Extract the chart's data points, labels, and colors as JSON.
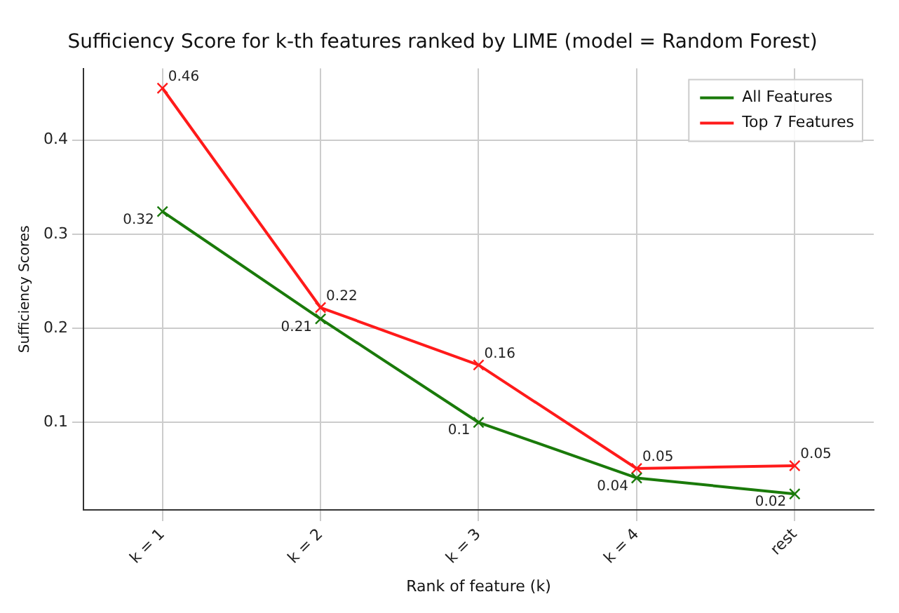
{
  "chart_data": {
    "type": "line",
    "title": "Sufficiency Score for k-th features ranked by LIME (model = Random Forest)",
    "xlabel": "Rank of feature (k)",
    "ylabel": "Sufficiency Scores",
    "categories": [
      "k = 1",
      "k = 2",
      "k = 3",
      "k = 4",
      "rest"
    ],
    "series": [
      {
        "name": "All Features",
        "color": "#1a7a0a",
        "values": [
          0.324,
          0.21,
          0.1,
          0.041,
          0.024
        ],
        "value_labels": [
          "0.32",
          "0.21",
          "0.1",
          "0.04",
          "0.02"
        ]
      },
      {
        "name": "Top 7 Features",
        "color": "#ff1a1a",
        "values": [
          0.455,
          0.222,
          0.161,
          0.051,
          0.054
        ],
        "value_labels": [
          "0.46",
          "0.22",
          "0.16",
          "0.05",
          "0.05"
        ]
      }
    ],
    "ylim": [
      0.007,
      0.476
    ],
    "yticks": [
      0.1,
      0.2,
      0.3,
      0.4
    ],
    "grid": true,
    "legend": "top right",
    "marker": "cross",
    "line_style": "solid"
  }
}
